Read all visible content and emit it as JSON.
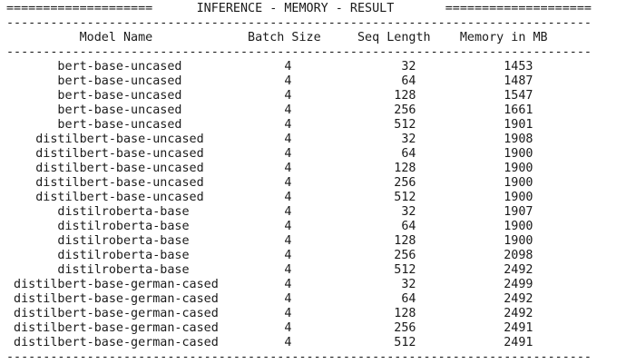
{
  "report": {
    "top_line": "====================      INFERENCE - MEMORY - RESULT       ====================",
    "separator": "--------------------------------------------------------------------------------",
    "header_line": "          Model Name             Batch Size     Seq Length    Memory in MB ",
    "rows": [
      "       bert-base-uncased              4               32            1453     ",
      "       bert-base-uncased              4               64            1487     ",
      "       bert-base-uncased              4              128            1547     ",
      "       bert-base-uncased              4              256            1661     ",
      "       bert-base-uncased              4              512            1901     ",
      "    distilbert-base-uncased           4               32            1908     ",
      "    distilbert-base-uncased           4               64            1900     ",
      "    distilbert-base-uncased           4              128            1900     ",
      "    distilbert-base-uncased           4              256            1900     ",
      "    distilbert-base-uncased           4              512            1900     ",
      "       distilroberta-base             4               32            1907     ",
      "       distilroberta-base             4               64            1900     ",
      "       distilroberta-base             4              128            1900     ",
      "       distilroberta-base             4              256            2098     ",
      "       distilroberta-base             4              512            2492     ",
      " distilbert-base-german-cased         4               32            2499     ",
      " distilbert-base-german-cased         4               64            2492     ",
      " distilbert-base-german-cased         4              128            2492     ",
      " distilbert-base-german-cased         4              256            2491     ",
      " distilbert-base-german-cased         4              512            2491     "
    ]
  }
}
